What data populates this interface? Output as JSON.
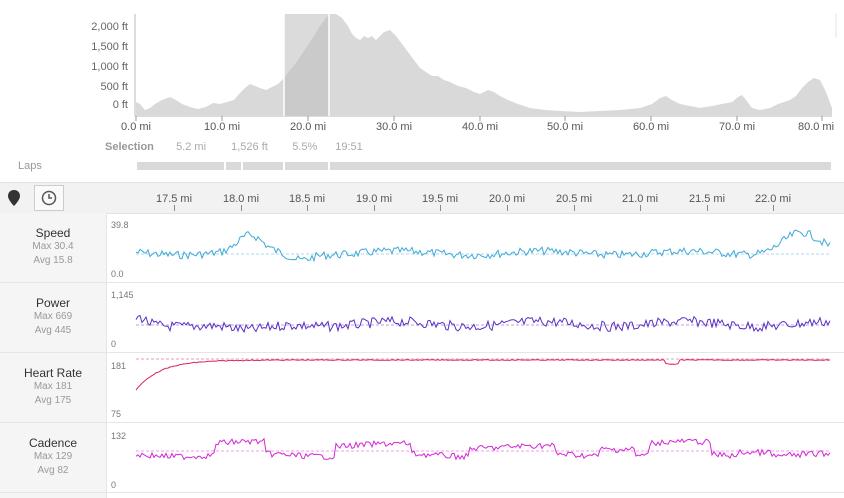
{
  "elevation": {
    "y_labels": [
      "2,000 ft",
      "1,500 ft",
      "1,000 ft",
      "500 ft",
      "0 ft"
    ],
    "x_labels": [
      "0.0 mi",
      "10.0 mi",
      "20.0 mi",
      "30.0 mi",
      "40.0 mi",
      "50.0 mi",
      "60.0 mi",
      "70.0 mi",
      "80.0 mi"
    ],
    "fill_color": "#d9d9d9",
    "selection_color": "#bdbdbd"
  },
  "selection": {
    "label": "Selection",
    "distance": "5.2 mi",
    "elevation_gain": "1,526 ft",
    "grade": "5.5%",
    "time": "19:51"
  },
  "laps": {
    "label": "Laps"
  },
  "toolbar": {
    "buttons": [
      {
        "icon": "map-pin-icon"
      },
      {
        "icon": "clock-icon"
      }
    ]
  },
  "mile_axis": [
    "17.5 mi",
    "18.0 mi",
    "18.5 mi",
    "19.0 mi",
    "19.5 mi",
    "20.0 mi",
    "20.5 mi",
    "21.0 mi",
    "21.5 mi",
    "22.0 mi"
  ],
  "streams": [
    {
      "key": "speed",
      "title": "Speed",
      "max": "Max 30.4",
      "avg": "Avg 15.8",
      "y_top": "39.8",
      "y_bottom": "0.0",
      "color": "#3ea9d8"
    },
    {
      "key": "power",
      "title": "Power",
      "max": "Max 669",
      "avg": "Avg 445",
      "y_top": "1,145",
      "y_bottom": "0",
      "color": "#5b2ec2"
    },
    {
      "key": "heart_rate",
      "title": "Heart Rate",
      "max": "Max 181",
      "avg": "Avg 175",
      "y_top": "181",
      "y_bottom": "75",
      "color": "#d6245c"
    },
    {
      "key": "cadence",
      "title": "Cadence",
      "max": "Max 129",
      "avg": "Avg 82",
      "y_top": "132",
      "y_bottom": "0",
      "color": "#d426d4"
    }
  ]
}
